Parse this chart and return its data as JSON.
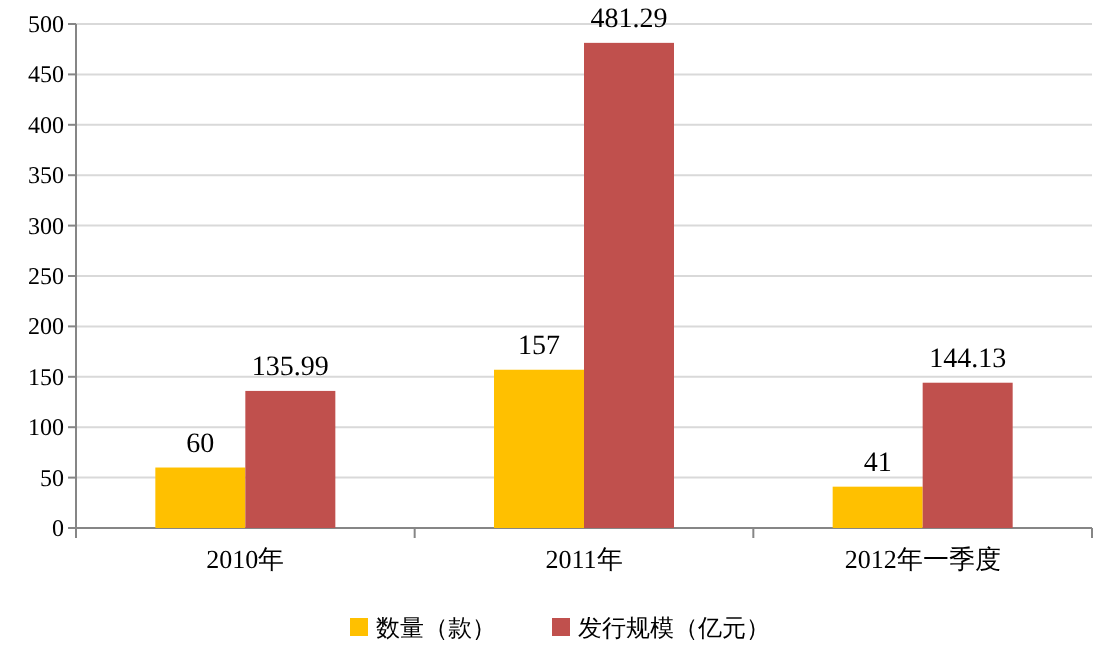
{
  "chart_data": {
    "type": "bar",
    "categories": [
      "2010年",
      "2011年",
      "2012年一季度"
    ],
    "series": [
      {
        "name": "数量（款）",
        "color": "#ffc000",
        "values": [
          60,
          157,
          41
        ]
      },
      {
        "name": "发行规模（亿元）",
        "color": "#c0504d",
        "values": [
          135.99,
          481.29,
          144.13
        ]
      }
    ],
    "ylim": [
      0,
      500
    ],
    "yticks": [
      0,
      50,
      100,
      150,
      200,
      250,
      300,
      350,
      400,
      450,
      500
    ],
    "grid": "y",
    "legend": "bottom",
    "data_labels": true
  }
}
